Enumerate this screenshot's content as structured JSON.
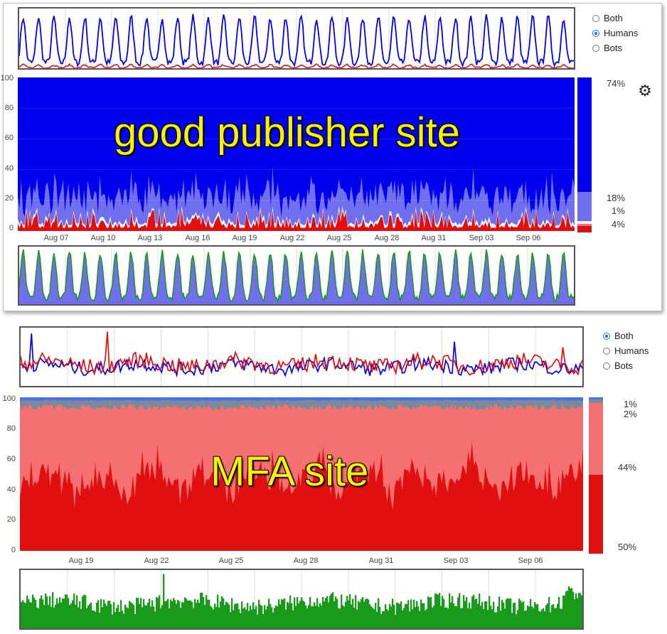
{
  "colors": {
    "humans_dark": "#0000ee",
    "humans_light": "#7070ee",
    "bots_dark": "#e01010",
    "bots_light": "#f57070",
    "traffic": "#1a9a1a",
    "gray_line": "#7a8a9a"
  },
  "icons": {
    "settings": "gear-icon"
  },
  "top_panel": {
    "radio_options": [
      {
        "label": "Both",
        "selected": false
      },
      {
        "label": "Humans",
        "selected": true
      },
      {
        "label": "Bots",
        "selected": false
      }
    ],
    "overlay_text": "good publisher site",
    "legend_labels": [
      "74%",
      "18%",
      "1%",
      "4%"
    ],
    "y_ticks": [
      "100",
      "80",
      "60",
      "40",
      "20",
      "0"
    ],
    "x_ticks": [
      "Aug 07",
      "Aug 10",
      "Aug 13",
      "Aug 16",
      "Aug 19",
      "Aug 22",
      "Aug 25",
      "Aug 28",
      "Aug 31",
      "Sep 03",
      "Sep 06"
    ]
  },
  "bottom_panel": {
    "radio_options": [
      {
        "label": "Both",
        "selected": true
      },
      {
        "label": "Humans",
        "selected": false
      },
      {
        "label": "Bots",
        "selected": false
      }
    ],
    "overlay_text": "MFA site",
    "legend_labels": [
      "1%",
      "2%",
      "44%",
      "50%"
    ],
    "y_ticks": [
      "100",
      "80",
      "60",
      "40",
      "20",
      "0"
    ],
    "x_ticks": [
      "Aug 19",
      "Aug 22",
      "Aug 25",
      "Aug 28",
      "Aug 31",
      "Sep 03",
      "Sep 06"
    ]
  },
  "chart_data": [
    {
      "type": "line",
      "panel": "good publisher site",
      "view": "traffic overview (Humans selected)",
      "x_range": [
        "Aug 04",
        "Sep 09"
      ],
      "series": [
        {
          "values_desc": "daily cycle, peaks ~0.9, troughs ~0.1",
          "peak": 0.9,
          "trough": 0.1
        },
        {
          "values_desc": "low near-zero line",
          "peak": 0.06,
          "trough": 0.01
        }
      ]
    },
    {
      "type": "area",
      "panel": "good publisher site",
      "ylim": [
        0,
        100
      ],
      "x_ticks": [
        "Aug 07",
        "Aug 10",
        "Aug 13",
        "Aug 16",
        "Aug 19",
        "Aug 22",
        "Aug 25",
        "Aug 28",
        "Aug 31",
        "Sep 03",
        "Sep 06"
      ],
      "series": [
        {
          "name": "74%",
          "share": 74
        },
        {
          "name": "18%",
          "share": 18
        },
        {
          "name": "1%",
          "share": 1
        },
        {
          "name": "4%",
          "share": 4
        }
      ]
    },
    {
      "type": "area",
      "panel": "good publisher site",
      "view": "traffic detail",
      "series": [
        {
          "peak": 0.95,
          "trough": 0.12
        }
      ]
    },
    {
      "type": "line",
      "panel": "MFA site",
      "view": "traffic overview (Both selected)",
      "series": [
        {
          "mean": 0.35,
          "spread": 0.25
        },
        {
          "mean": 0.4,
          "spread": 0.3
        }
      ]
    },
    {
      "type": "area",
      "panel": "MFA site",
      "ylim": [
        0,
        100
      ],
      "x_ticks": [
        "Aug 19",
        "Aug 22",
        "Aug 25",
        "Aug 28",
        "Aug 31",
        "Sep 03",
        "Sep 06"
      ],
      "series": [
        {
          "name": "1%",
          "share": 1
        },
        {
          "name": "2%",
          "share": 2
        },
        {
          "name": "44%",
          "share": 44
        },
        {
          "name": "50%",
          "share": 50
        }
      ]
    },
    {
      "type": "bar",
      "panel": "MFA site",
      "view": "traffic detail",
      "series": [
        {
          "mean": 0.45,
          "spread": 0.3
        }
      ]
    }
  ]
}
